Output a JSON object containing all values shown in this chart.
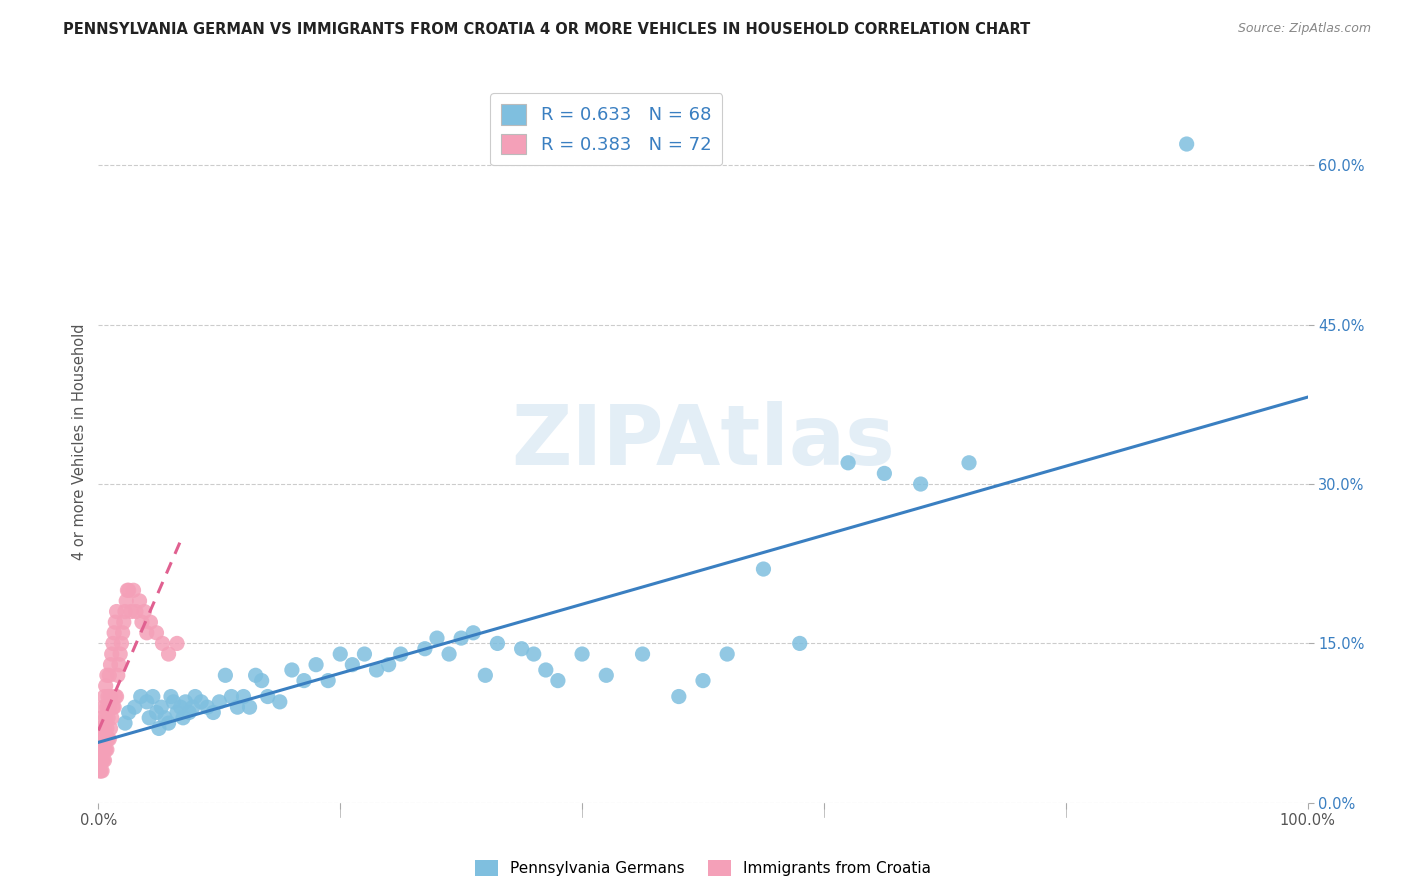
{
  "title": "PENNSYLVANIA GERMAN VS IMMIGRANTS FROM CROATIA 4 OR MORE VEHICLES IN HOUSEHOLD CORRELATION CHART",
  "source": "Source: ZipAtlas.com",
  "ylabel": "4 or more Vehicles in Household",
  "xlim": [
    0,
    1.0
  ],
  "ylim": [
    0,
    0.68
  ],
  "xticks": [
    0.0,
    0.2,
    0.4,
    0.6,
    0.8,
    1.0
  ],
  "xticklabels": [
    "0.0%",
    "",
    "",
    "",
    "",
    "100.0%"
  ],
  "right_ytick_vals": [
    0.0,
    0.15,
    0.3,
    0.45,
    0.6
  ],
  "right_yticklabels": [
    "0.0%",
    "15.0%",
    "30.0%",
    "45.0%",
    "60.0%"
  ],
  "blue_R": 0.633,
  "blue_N": 68,
  "pink_R": 0.383,
  "pink_N": 72,
  "blue_color": "#7fbfdf",
  "pink_color": "#f4a0b8",
  "blue_line_color": "#3a7fc1",
  "pink_line_color": "#e06090",
  "grid_color": "#cccccc",
  "background_color": "#ffffff",
  "watermark_text": "ZIPAtlas",
  "legend1_label": "Pennsylvania Germans",
  "legend2_label": "Immigrants from Croatia",
  "blue_x": [
    0.022,
    0.025,
    0.03,
    0.035,
    0.04,
    0.042,
    0.045,
    0.048,
    0.05,
    0.052,
    0.055,
    0.058,
    0.06,
    0.062,
    0.065,
    0.068,
    0.07,
    0.072,
    0.075,
    0.078,
    0.08,
    0.085,
    0.09,
    0.095,
    0.1,
    0.105,
    0.11,
    0.115,
    0.12,
    0.125,
    0.13,
    0.135,
    0.14,
    0.15,
    0.16,
    0.17,
    0.18,
    0.19,
    0.2,
    0.21,
    0.22,
    0.23,
    0.24,
    0.25,
    0.27,
    0.28,
    0.29,
    0.3,
    0.31,
    0.32,
    0.33,
    0.35,
    0.36,
    0.37,
    0.38,
    0.4,
    0.42,
    0.45,
    0.48,
    0.5,
    0.52,
    0.55,
    0.58,
    0.62,
    0.65,
    0.68,
    0.72,
    0.9
  ],
  "blue_y": [
    0.075,
    0.085,
    0.09,
    0.1,
    0.095,
    0.08,
    0.1,
    0.085,
    0.07,
    0.09,
    0.08,
    0.075,
    0.1,
    0.095,
    0.085,
    0.09,
    0.08,
    0.095,
    0.085,
    0.09,
    0.1,
    0.095,
    0.09,
    0.085,
    0.095,
    0.12,
    0.1,
    0.09,
    0.1,
    0.09,
    0.12,
    0.115,
    0.1,
    0.095,
    0.125,
    0.115,
    0.13,
    0.115,
    0.14,
    0.13,
    0.14,
    0.125,
    0.13,
    0.14,
    0.145,
    0.155,
    0.14,
    0.155,
    0.16,
    0.12,
    0.15,
    0.145,
    0.14,
    0.125,
    0.115,
    0.14,
    0.12,
    0.14,
    0.1,
    0.115,
    0.14,
    0.22,
    0.15,
    0.32,
    0.31,
    0.3,
    0.32,
    0.62
  ],
  "pink_x": [
    0.001,
    0.001,
    0.001,
    0.001,
    0.002,
    0.002,
    0.002,
    0.002,
    0.002,
    0.003,
    0.003,
    0.003,
    0.003,
    0.003,
    0.004,
    0.004,
    0.004,
    0.004,
    0.005,
    0.005,
    0.005,
    0.005,
    0.005,
    0.006,
    0.006,
    0.006,
    0.006,
    0.007,
    0.007,
    0.007,
    0.007,
    0.008,
    0.008,
    0.008,
    0.009,
    0.009,
    0.009,
    0.01,
    0.01,
    0.01,
    0.011,
    0.011,
    0.012,
    0.012,
    0.013,
    0.013,
    0.014,
    0.014,
    0.015,
    0.015,
    0.016,
    0.017,
    0.018,
    0.019,
    0.02,
    0.021,
    0.022,
    0.023,
    0.024,
    0.025,
    0.027,
    0.029,
    0.031,
    0.034,
    0.036,
    0.038,
    0.04,
    0.043,
    0.048,
    0.053,
    0.058,
    0.065
  ],
  "pink_y": [
    0.03,
    0.04,
    0.05,
    0.06,
    0.03,
    0.04,
    0.05,
    0.06,
    0.07,
    0.03,
    0.04,
    0.05,
    0.07,
    0.08,
    0.04,
    0.05,
    0.06,
    0.09,
    0.04,
    0.05,
    0.06,
    0.07,
    0.1,
    0.05,
    0.06,
    0.08,
    0.11,
    0.05,
    0.07,
    0.09,
    0.12,
    0.06,
    0.08,
    0.1,
    0.06,
    0.09,
    0.12,
    0.07,
    0.1,
    0.13,
    0.08,
    0.14,
    0.09,
    0.15,
    0.09,
    0.16,
    0.1,
    0.17,
    0.1,
    0.18,
    0.12,
    0.13,
    0.14,
    0.15,
    0.16,
    0.17,
    0.18,
    0.19,
    0.2,
    0.2,
    0.18,
    0.2,
    0.18,
    0.19,
    0.17,
    0.18,
    0.16,
    0.17,
    0.16,
    0.15,
    0.14,
    0.15
  ]
}
